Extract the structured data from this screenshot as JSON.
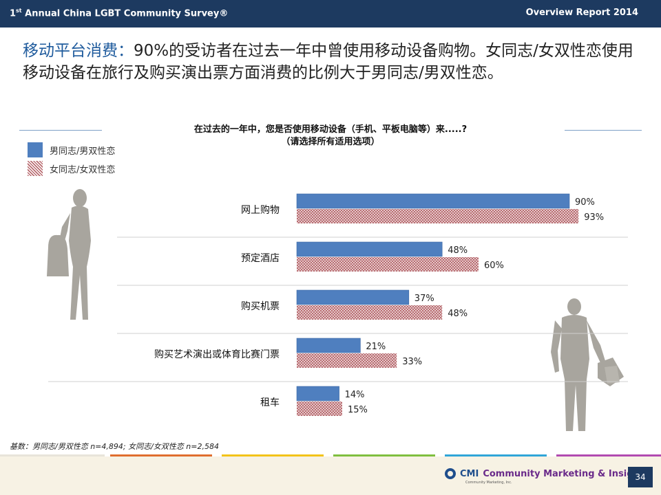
{
  "header": {
    "left_title_prefix": "1",
    "left_title_sup": "st",
    "left_title_rest": " Annual China LGBT Community Survey®",
    "right_title": "Overview Report 2014"
  },
  "headline": {
    "highlight": "移动平台消费：",
    "text": "90%的受访者在过去一年中曾使用移动设备购物。女同志/女双性恋使用移动设备在旅行及购买演出票方面消费的比例大于男同志/男双性恋。"
  },
  "question": {
    "line1": "在过去的一年中，您是否使用移动设备（手机、平板电脑等）来.....?",
    "line2": "（请选择所有适用选项）"
  },
  "legend": {
    "male": "男同志/男双性恋",
    "female": "女同志/女双性恋"
  },
  "colors": {
    "male_bar": "#4f7fbf",
    "female_hatch": "#b86a6f",
    "header_bg": "#1d3a60",
    "headline_highlight": "#1f5b9d"
  },
  "chart_data": {
    "type": "bar",
    "orientation": "horizontal",
    "categories": [
      "网上购物",
      "预定酒店",
      "购买机票",
      "购买艺术演出或体育比赛门票",
      "租车"
    ],
    "series": [
      {
        "name": "男同志/男双性恋",
        "values": [
          90,
          48,
          37,
          21,
          14
        ]
      },
      {
        "name": "女同志/女双性恋",
        "values": [
          93,
          60,
          48,
          33,
          15
        ]
      }
    ],
    "value_suffix": "%",
    "xlim": [
      0,
      100
    ],
    "grid": false,
    "legend_position": "top-left"
  },
  "footnote": "基数：男同志/男双性恋 n=4,894; 女同志/女双性恋 n=2,584",
  "footer": {
    "logo_abbr": "CMI",
    "logo_name": "Community Marketing & Insights",
    "logo_sub": "Community Marketing, Inc.",
    "page_number": "34"
  }
}
